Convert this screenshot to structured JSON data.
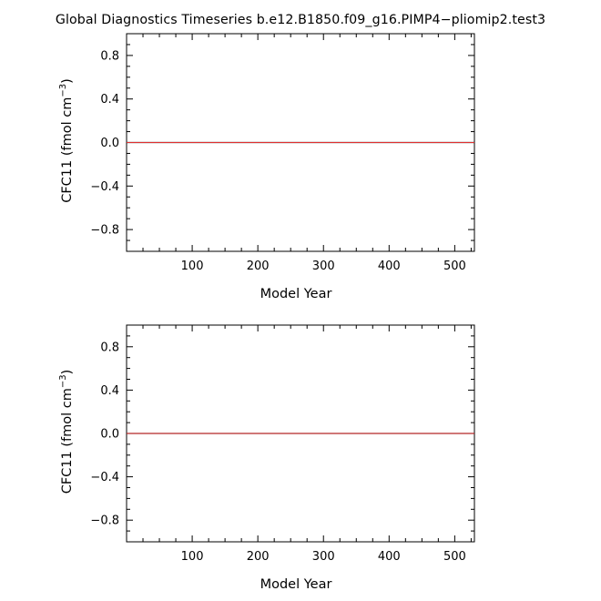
{
  "figure": {
    "title": "Global Diagnostics Timeseries b.e12.B1850.f09_g16.PIMP4−pliomip2.test3"
  },
  "chart_data": [
    {
      "type": "line",
      "xlabel": "Model Year",
      "ylabel": "CFC11  (fmol cm",
      "ylabel_sup": "−3",
      "ylabel_close": ")",
      "xlim": [
        0,
        530
      ],
      "ylim": [
        -1.0,
        1.0
      ],
      "xticks": [
        100,
        200,
        300,
        400,
        500
      ],
      "xtick_labels": [
        "100",
        "200",
        "300",
        "400",
        "500"
      ],
      "yticks": [
        0.8,
        0.4,
        0.0,
        -0.4,
        -0.8
      ],
      "ytick_labels": [
        "0.8",
        "0.4",
        "0.0",
        "−0.4",
        "−0.8"
      ],
      "grid": false,
      "series": [
        {
          "color": "#000000",
          "x": [
            0,
            530
          ],
          "y": [
            0.0,
            0.0
          ]
        },
        {
          "color": "#e03030",
          "x": [
            0,
            530
          ],
          "y": [
            0.0,
            0.0
          ]
        }
      ]
    },
    {
      "type": "line",
      "xlabel": "Model Year",
      "ylabel": "CFC11  (fmol cm",
      "ylabel_sup": "−3",
      "ylabel_close": ")",
      "xlim": [
        0,
        530
      ],
      "ylim": [
        -1.0,
        1.0
      ],
      "xticks": [
        100,
        200,
        300,
        400,
        500
      ],
      "xtick_labels": [
        "100",
        "200",
        "300",
        "400",
        "500"
      ],
      "yticks": [
        0.8,
        0.4,
        0.0,
        -0.4,
        -0.8
      ],
      "ytick_labels": [
        "0.8",
        "0.4",
        "0.0",
        "−0.4",
        "−0.8"
      ],
      "grid": false,
      "series": [
        {
          "color": "#000000",
          "x": [
            0,
            530
          ],
          "y": [
            0.0,
            0.0
          ]
        },
        {
          "color": "#e03030",
          "x": [
            0,
            530
          ],
          "y": [
            0.0,
            0.0
          ]
        }
      ]
    }
  ]
}
